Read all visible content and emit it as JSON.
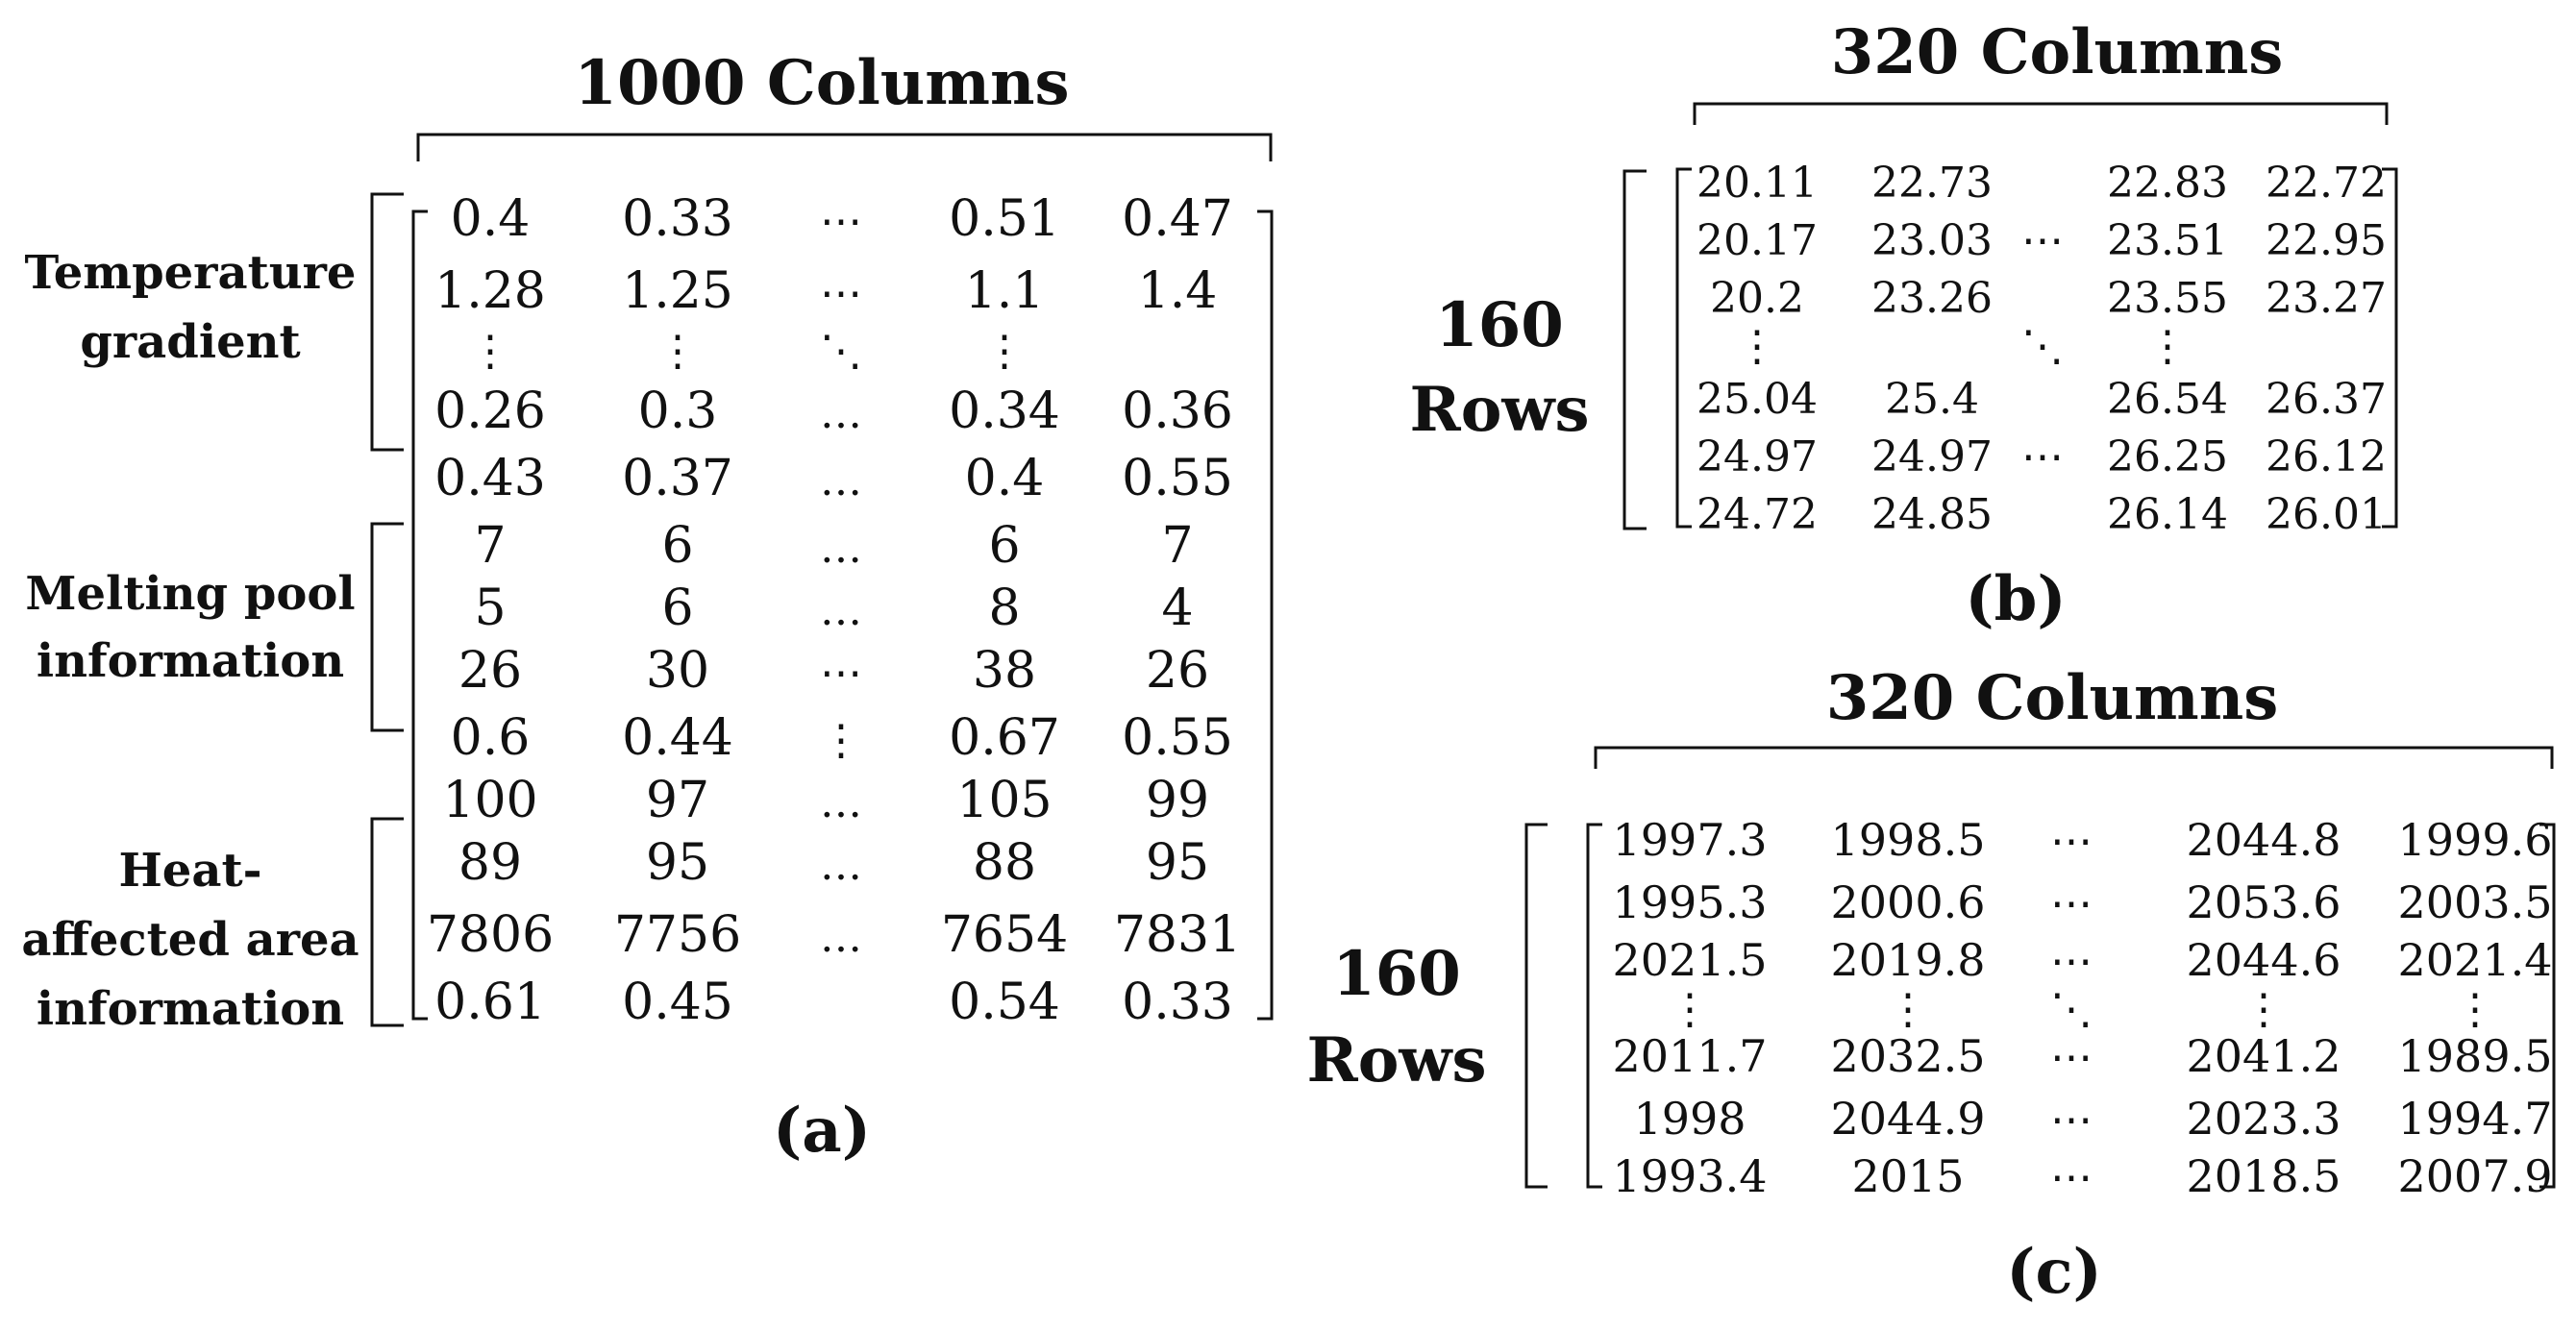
{
  "panel_a": {
    "col_header": "1000 Columns",
    "caption": "(a)",
    "groups": [
      {
        "label_lines": [
          "Temperature",
          "gradient"
        ]
      },
      {
        "label_lines": [
          "Melting pool",
          "information"
        ]
      },
      {
        "label_lines": [
          "Heat-",
          "affected area",
          "information"
        ]
      }
    ],
    "rows": [
      [
        "0.4",
        "0.33",
        "⋯",
        "0.51",
        "0.47"
      ],
      [
        "1.28",
        "1.25",
        "⋯",
        "1.1",
        "1.4"
      ],
      [
        "⋮",
        "⋮",
        "⋱",
        "⋮",
        ""
      ],
      [
        "0.26",
        "0.3",
        "…",
        "0.34",
        "0.36"
      ],
      [
        "0.43",
        "0.37",
        "…",
        "0.4",
        "0.55"
      ],
      [
        "7",
        "6",
        "…",
        "6",
        "7"
      ],
      [
        "5",
        "6",
        "…",
        "8",
        "4"
      ],
      [
        "26",
        "30",
        "⋯",
        "38",
        "26"
      ],
      [
        "0.6",
        "0.44",
        "⋮",
        "0.67",
        "0.55"
      ],
      [
        "100",
        "97",
        "…",
        "105",
        "99"
      ],
      [
        "89",
        "95",
        "…",
        "88",
        "95"
      ],
      [
        "7806",
        "7756",
        "…",
        "7654",
        "7831"
      ],
      [
        "0.61",
        "0.45",
        "",
        "0.54",
        "0.33"
      ]
    ]
  },
  "panel_b": {
    "col_header": "320 Columns",
    "row_label_lines": [
      "160",
      "Rows"
    ],
    "caption": "(b)",
    "rows": [
      [
        "20.11",
        "22.73",
        "",
        "22.83",
        "22.72"
      ],
      [
        "20.17",
        "23.03",
        "⋯",
        "23.51",
        "22.95"
      ],
      [
        "20.2",
        "23.26",
        "",
        "23.55",
        "23.27"
      ],
      [
        "⋮",
        "",
        "⋱",
        "⋮",
        ""
      ],
      [
        "25.04",
        "25.4",
        "",
        "26.54",
        "26.37"
      ],
      [
        "24.97",
        "24.97",
        "⋯",
        "26.25",
        "26.12"
      ],
      [
        "24.72",
        "24.85",
        "",
        "26.14",
        "26.01"
      ]
    ]
  },
  "panel_c": {
    "col_header": "320 Columns",
    "row_label_lines": [
      "160",
      "Rows"
    ],
    "caption": "(c)",
    "rows": [
      [
        "1997.3",
        "1998.5",
        "⋯",
        "2044.8",
        "1999.6"
      ],
      [
        "1995.3",
        "2000.6",
        "⋯",
        "2053.6",
        "2003.5"
      ],
      [
        "2021.5",
        "2019.8",
        "⋯",
        "2044.6",
        "2021.4"
      ],
      [
        "⋮",
        "⋮",
        "⋱",
        "⋮",
        "⋮"
      ],
      [
        "2011.7",
        "2032.5",
        "⋯",
        "2041.2",
        "1989.5"
      ],
      [
        "1998",
        "2044.9",
        "⋯",
        "2023.3",
        "1994.7"
      ],
      [
        "1993.4",
        "2015",
        "⋯",
        "2018.5",
        "2007.9"
      ]
    ]
  }
}
